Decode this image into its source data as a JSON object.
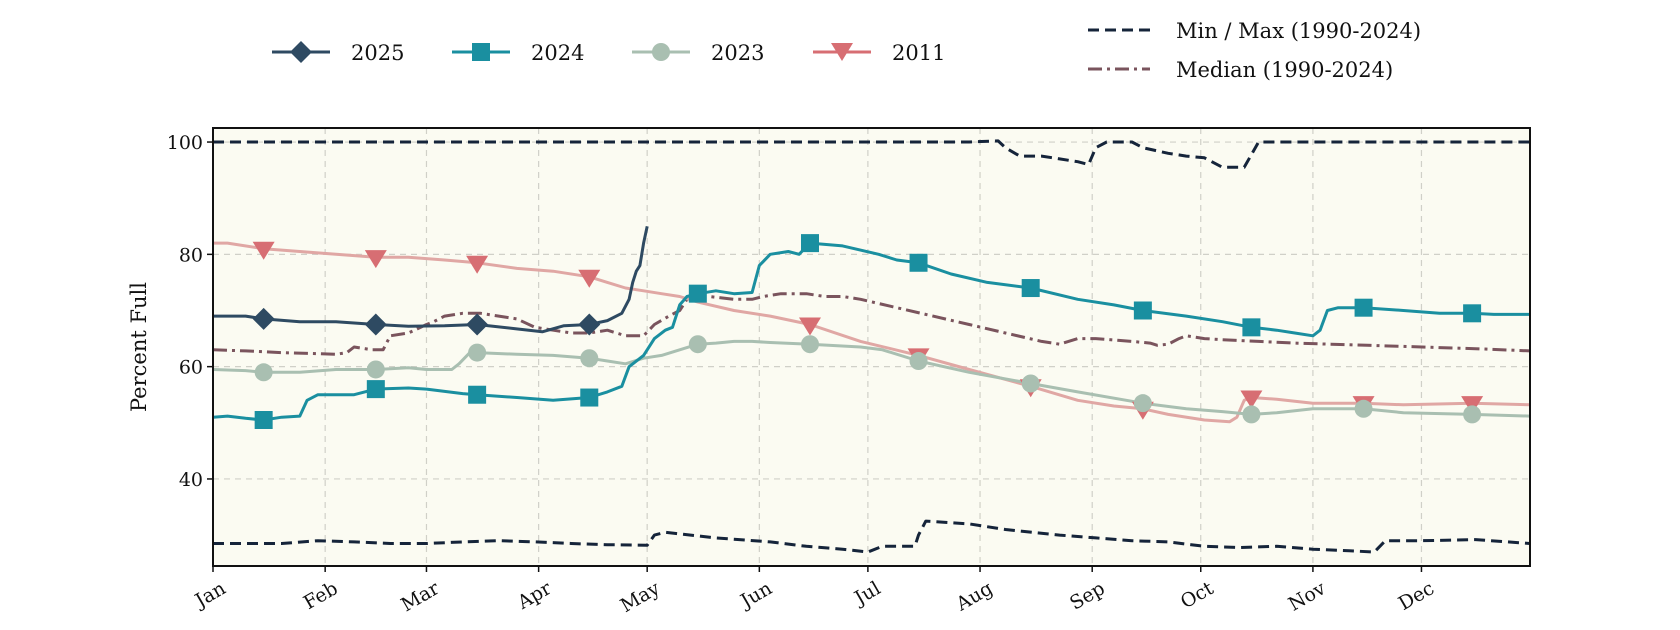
{
  "chart_data": {
    "type": "line",
    "title": "",
    "xlabel": "",
    "ylabel": "Percent Full",
    "x_unit": "day of year",
    "categories": [
      "Jan",
      "Feb",
      "Mar",
      "Apr",
      "May",
      "Jun",
      "Jul",
      "Aug",
      "Sep",
      "Oct",
      "Nov",
      "Dec"
    ],
    "category_start_days": [
      1,
      32,
      60,
      91,
      121,
      152,
      182,
      213,
      244,
      274,
      305,
      335
    ],
    "xlim": [
      1,
      365
    ],
    "ylim": [
      24.5,
      102.5
    ],
    "yticks": [
      40,
      60,
      80,
      100
    ],
    "grid": true,
    "plot_background": "#fbfbf2",
    "legend_left_placement": "top-left",
    "legend_right_placement": "top-right",
    "series": [
      {
        "name": "2025",
        "color": "#2e4a62",
        "marker": "diamond",
        "style": "solid",
        "width": 3,
        "marker_days": [
          15,
          46,
          74,
          105
        ],
        "points": [
          [
            1,
            69
          ],
          [
            10,
            69
          ],
          [
            15,
            68.5
          ],
          [
            25,
            68
          ],
          [
            35,
            68
          ],
          [
            46,
            67.5
          ],
          [
            55,
            67.2
          ],
          [
            65,
            67.3
          ],
          [
            74,
            67.5
          ],
          [
            84,
            66.8
          ],
          [
            92,
            66.2
          ],
          [
            98,
            67.3
          ],
          [
            105,
            67.5
          ],
          [
            110,
            68.2
          ],
          [
            114,
            69.5
          ],
          [
            116,
            72
          ],
          [
            117,
            75
          ],
          [
            118,
            77
          ],
          [
            119,
            78
          ],
          [
            120,
            82
          ],
          [
            121,
            85
          ]
        ]
      },
      {
        "name": "2024",
        "color": "#1a8fa0",
        "marker": "square",
        "style": "solid",
        "width": 3,
        "marker_days": [
          15,
          46,
          74,
          105,
          135,
          166,
          196,
          227,
          258,
          288,
          319,
          349
        ],
        "points": [
          [
            1,
            51
          ],
          [
            5,
            51.2
          ],
          [
            10,
            50.8
          ],
          [
            15,
            50.5
          ],
          [
            20,
            51
          ],
          [
            25,
            51.2
          ],
          [
            27,
            54
          ],
          [
            30,
            55
          ],
          [
            40,
            55
          ],
          [
            46,
            56
          ],
          [
            55,
            56.2
          ],
          [
            60,
            56
          ],
          [
            70,
            55.2
          ],
          [
            74,
            55
          ],
          [
            85,
            54.5
          ],
          [
            95,
            54
          ],
          [
            105,
            54.5
          ],
          [
            110,
            55.5
          ],
          [
            114,
            56.5
          ],
          [
            116,
            60
          ],
          [
            120,
            62
          ],
          [
            123,
            65
          ],
          [
            126,
            66.5
          ],
          [
            128,
            67
          ],
          [
            130,
            71
          ],
          [
            132,
            72.5
          ],
          [
            135,
            73
          ],
          [
            140,
            73.5
          ],
          [
            145,
            73
          ],
          [
            150,
            73.2
          ],
          [
            152,
            78
          ],
          [
            155,
            80
          ],
          [
            160,
            80.5
          ],
          [
            163,
            80
          ],
          [
            166,
            82
          ],
          [
            175,
            81.5
          ],
          [
            185,
            80
          ],
          [
            190,
            79
          ],
          [
            196,
            78.5
          ],
          [
            205,
            76.5
          ],
          [
            215,
            75
          ],
          [
            227,
            74
          ],
          [
            240,
            72
          ],
          [
            250,
            71
          ],
          [
            258,
            70
          ],
          [
            270,
            69
          ],
          [
            280,
            68
          ],
          [
            288,
            67
          ],
          [
            295,
            66.5
          ],
          [
            300,
            66
          ],
          [
            305,
            65.5
          ],
          [
            307,
            66.5
          ],
          [
            309,
            70
          ],
          [
            312,
            70.5
          ],
          [
            319,
            70.5
          ],
          [
            330,
            70
          ],
          [
            340,
            69.5
          ],
          [
            349,
            69.5
          ],
          [
            355,
            69.3
          ],
          [
            365,
            69.3
          ]
        ]
      },
      {
        "name": "2023",
        "color": "#a9bfb1",
        "marker": "circle",
        "style": "solid",
        "width": 3,
        "marker_days": [
          15,
          46,
          74,
          105,
          135,
          166,
          196,
          227,
          258,
          288,
          319,
          349
        ],
        "points": [
          [
            1,
            59.5
          ],
          [
            10,
            59.3
          ],
          [
            15,
            59
          ],
          [
            25,
            59
          ],
          [
            35,
            59.5
          ],
          [
            46,
            59.5
          ],
          [
            55,
            59.8
          ],
          [
            60,
            59.5
          ],
          [
            67,
            59.5
          ],
          [
            69,
            60.5
          ],
          [
            72,
            62.5
          ],
          [
            74,
            62.5
          ],
          [
            85,
            62.2
          ],
          [
            95,
            62
          ],
          [
            105,
            61.5
          ],
          [
            110,
            61
          ],
          [
            115,
            60.5
          ],
          [
            120,
            61.5
          ],
          [
            125,
            62
          ],
          [
            130,
            63
          ],
          [
            135,
            64
          ],
          [
            140,
            64.2
          ],
          [
            145,
            64.5
          ],
          [
            150,
            64.5
          ],
          [
            155,
            64.3
          ],
          [
            166,
            64
          ],
          [
            180,
            63.5
          ],
          [
            186,
            63
          ],
          [
            196,
            61
          ],
          [
            210,
            59
          ],
          [
            227,
            57
          ],
          [
            240,
            55.5
          ],
          [
            258,
            53.5
          ],
          [
            270,
            52.5
          ],
          [
            280,
            52
          ],
          [
            288,
            51.5
          ],
          [
            295,
            51.8
          ],
          [
            305,
            52.5
          ],
          [
            319,
            52.5
          ],
          [
            330,
            51.8
          ],
          [
            349,
            51.5
          ],
          [
            365,
            51.2
          ]
        ]
      },
      {
        "name": "2011",
        "color": "#d76e73",
        "line_color": "#e0a7a4",
        "marker": "triangle-down",
        "style": "solid",
        "width": 3,
        "marker_days": [
          15,
          46,
          74,
          105,
          166,
          196,
          227,
          258,
          288,
          319,
          349
        ],
        "points": [
          [
            1,
            82
          ],
          [
            5,
            82
          ],
          [
            15,
            81
          ],
          [
            25,
            80.5
          ],
          [
            35,
            80
          ],
          [
            46,
            79.5
          ],
          [
            55,
            79.5
          ],
          [
            65,
            79
          ],
          [
            74,
            78.5
          ],
          [
            85,
            77.5
          ],
          [
            95,
            77
          ],
          [
            105,
            76
          ],
          [
            110,
            75
          ],
          [
            115,
            74
          ],
          [
            120,
            73.5
          ],
          [
            125,
            73
          ],
          [
            130,
            72.5
          ],
          [
            135,
            71.5
          ],
          [
            145,
            70
          ],
          [
            155,
            69
          ],
          [
            166,
            67.5
          ],
          [
            180,
            64.5
          ],
          [
            196,
            62
          ],
          [
            210,
            59.5
          ],
          [
            227,
            56.5
          ],
          [
            240,
            54
          ],
          [
            250,
            53
          ],
          [
            258,
            52.5
          ],
          [
            265,
            51.5
          ],
          [
            275,
            50.5
          ],
          [
            282,
            50.2
          ],
          [
            284,
            51
          ],
          [
            286,
            54
          ],
          [
            288,
            54.5
          ],
          [
            295,
            54.2
          ],
          [
            305,
            53.5
          ],
          [
            319,
            53.5
          ],
          [
            330,
            53.2
          ],
          [
            349,
            53.5
          ],
          [
            365,
            53.2
          ]
        ]
      },
      {
        "name": "Min / Max (1990-2024)",
        "color": "#15243a",
        "style": "dashed",
        "width": 3,
        "max_points": [
          [
            1,
            100
          ],
          [
            100,
            100
          ],
          [
            150,
            100
          ],
          [
            210,
            100
          ],
          [
            218,
            100.2
          ],
          [
            220,
            99
          ],
          [
            224,
            97.5
          ],
          [
            230,
            97.5
          ],
          [
            235,
            97
          ],
          [
            240,
            96.5
          ],
          [
            243,
            96
          ],
          [
            245,
            99
          ],
          [
            248,
            100
          ],
          [
            255,
            100
          ],
          [
            258,
            99
          ],
          [
            265,
            98
          ],
          [
            270,
            97.5
          ],
          [
            275,
            97.2
          ],
          [
            280,
            95.5
          ],
          [
            286,
            95.5
          ],
          [
            290,
            100
          ],
          [
            300,
            100
          ],
          [
            365,
            100
          ]
        ],
        "min_points": [
          [
            1,
            28.5
          ],
          [
            10,
            28.5
          ],
          [
            20,
            28.5
          ],
          [
            30,
            29
          ],
          [
            40,
            28.8
          ],
          [
            50,
            28.5
          ],
          [
            60,
            28.5
          ],
          [
            70,
            28.8
          ],
          [
            80,
            29
          ],
          [
            90,
            28.8
          ],
          [
            100,
            28.5
          ],
          [
            110,
            28.3
          ],
          [
            121,
            28.2
          ],
          [
            123,
            30
          ],
          [
            126,
            30.5
          ],
          [
            140,
            29.5
          ],
          [
            155,
            28.8
          ],
          [
            165,
            28
          ],
          [
            175,
            27.5
          ],
          [
            182,
            27
          ],
          [
            186,
            28
          ],
          [
            195,
            28
          ],
          [
            196,
            30
          ],
          [
            198,
            32.5
          ],
          [
            210,
            32
          ],
          [
            220,
            31
          ],
          [
            235,
            30
          ],
          [
            245,
            29.5
          ],
          [
            255,
            29
          ],
          [
            265,
            28.8
          ],
          [
            275,
            28
          ],
          [
            285,
            27.8
          ],
          [
            295,
            28
          ],
          [
            305,
            27.5
          ],
          [
            315,
            27.2
          ],
          [
            322,
            27
          ],
          [
            325,
            29
          ],
          [
            335,
            29
          ],
          [
            350,
            29.2
          ],
          [
            365,
            28.5
          ]
        ]
      },
      {
        "name": "Median (1990-2024)",
        "color": "#7a545d",
        "style": "dashdot",
        "width": 3,
        "points": [
          [
            1,
            63
          ],
          [
            10,
            62.8
          ],
          [
            20,
            62.5
          ],
          [
            30,
            62.3
          ],
          [
            35,
            62.2
          ],
          [
            38,
            62.5
          ],
          [
            40,
            63.5
          ],
          [
            45,
            63
          ],
          [
            48,
            63
          ],
          [
            50,
            65.5
          ],
          [
            55,
            66
          ],
          [
            60,
            67.5
          ],
          [
            62,
            68
          ],
          [
            65,
            69
          ],
          [
            70,
            69.5
          ],
          [
            75,
            69.5
          ],
          [
            80,
            69
          ],
          [
            85,
            68.5
          ],
          [
            90,
            67
          ],
          [
            95,
            66.5
          ],
          [
            100,
            66
          ],
          [
            105,
            66
          ],
          [
            110,
            66.5
          ],
          [
            115,
            65.5
          ],
          [
            120,
            65.5
          ],
          [
            123,
            67.5
          ],
          [
            127,
            69
          ],
          [
            130,
            70
          ],
          [
            132,
            72
          ],
          [
            138,
            72.5
          ],
          [
            145,
            72
          ],
          [
            150,
            72
          ],
          [
            153,
            72.5
          ],
          [
            158,
            73
          ],
          [
            165,
            73
          ],
          [
            170,
            72.5
          ],
          [
            175,
            72.5
          ],
          [
            180,
            72
          ],
          [
            190,
            70.5
          ],
          [
            200,
            69
          ],
          [
            210,
            67.5
          ],
          [
            220,
            66
          ],
          [
            230,
            64.5
          ],
          [
            235,
            64
          ],
          [
            240,
            65
          ],
          [
            245,
            65
          ],
          [
            255,
            64.5
          ],
          [
            260,
            64.2
          ],
          [
            262,
            63.8
          ],
          [
            265,
            64
          ],
          [
            268,
            65
          ],
          [
            270,
            65.5
          ],
          [
            275,
            65
          ],
          [
            280,
            64.8
          ],
          [
            290,
            64.5
          ],
          [
            300,
            64.2
          ],
          [
            310,
            64
          ],
          [
            320,
            63.8
          ],
          [
            330,
            63.6
          ],
          [
            340,
            63.4
          ],
          [
            350,
            63.2
          ],
          [
            365,
            62.8
          ]
        ]
      }
    ]
  },
  "legend": {
    "left": [
      "2025",
      "2024",
      "2023",
      "2011"
    ],
    "right": [
      "Min / Max (1990-2024)",
      "Median (1990-2024)"
    ]
  }
}
